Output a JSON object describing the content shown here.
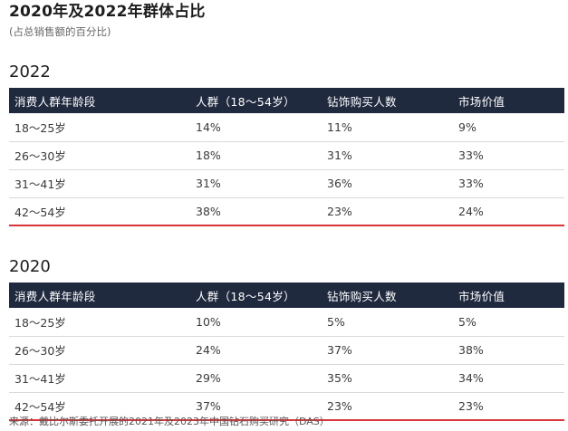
{
  "header": {
    "title": "2020年及2022年群体占比",
    "subtitle": "(占总销售额的百分比)"
  },
  "columns": [
    "消费人群年龄段",
    "人群（18～54岁）",
    "钻饰购买人数",
    "市场价值"
  ],
  "tables": [
    {
      "year": "2022",
      "rows": [
        [
          "18～25岁",
          "14%",
          "11%",
          "9%"
        ],
        [
          "26～30岁",
          "18%",
          "31%",
          "33%"
        ],
        [
          "31～41岁",
          "31%",
          "36%",
          "33%"
        ],
        [
          "42～54岁",
          "38%",
          "23%",
          "24%"
        ]
      ]
    },
    {
      "year": "2020",
      "rows": [
        [
          "18～25岁",
          "10%",
          "5%",
          "5%"
        ],
        [
          "26～30岁",
          "24%",
          "37%",
          "38%"
        ],
        [
          "31～41岁",
          "29%",
          "35%",
          "34%"
        ],
        [
          "42～54岁",
          "37%",
          "23%",
          "23%"
        ]
      ]
    }
  ],
  "footer": {
    "source": "来源：戴比尔斯委托开展的2021年及2023年中国钻石购买研究（DAS）"
  },
  "colors": {
    "header_bg": "#1f2a3f",
    "accent_line": "#d9343a"
  }
}
